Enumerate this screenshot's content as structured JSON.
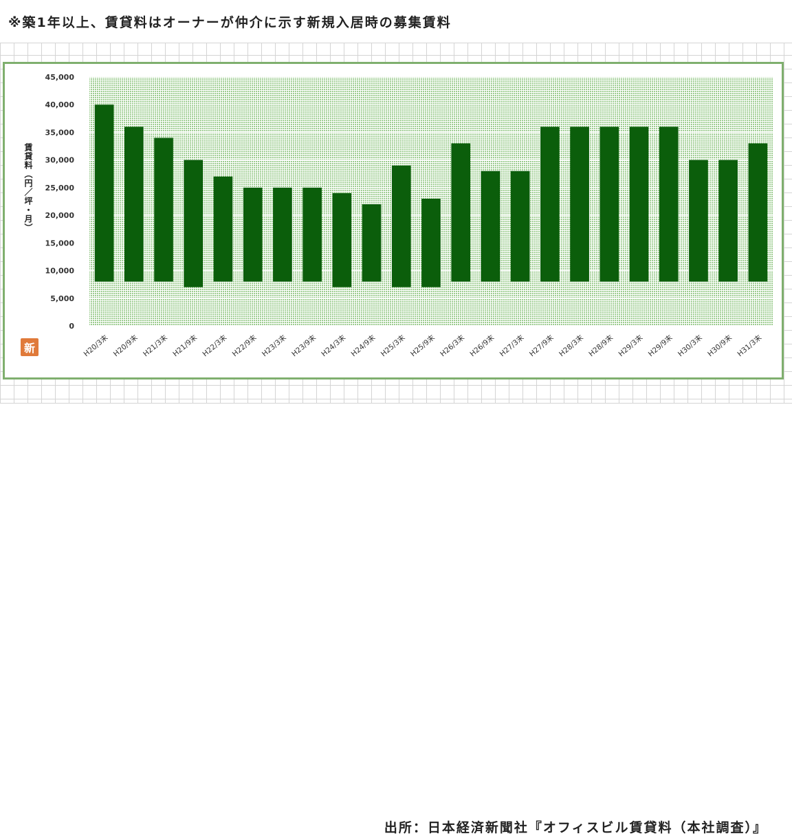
{
  "header": {
    "note": "※築1年以上、賃貸料はオーナーが仲介に示す新規入居時の募集賃料"
  },
  "footer": {
    "source": "出所：日本経済新聞社『オフィスビル賃貸料（本社調査）』"
  },
  "logo": {
    "text": "新",
    "color": "#e07a3a"
  },
  "chart_data": {
    "type": "bar",
    "title": "",
    "xlabel": "",
    "ylabel": "賃貸料（円／坪・月）",
    "ylim": [
      0,
      45000
    ],
    "yticks": [
      0,
      5000,
      10000,
      15000,
      20000,
      25000,
      30000,
      35000,
      40000,
      45000
    ],
    "ytick_labels": [
      "0",
      "5,000",
      "10,000",
      "15,000",
      "20,000",
      "25,000",
      "30,000",
      "35,000",
      "40,000",
      "45,000"
    ],
    "grid": true,
    "bar_color": "#0b5e0b",
    "plot_bg_color": "#9ccc8f",
    "categories": [
      "H20/3末",
      "H20/9末",
      "H21/3末",
      "H21/9末",
      "H22/3末",
      "H22/9末",
      "H23/3末",
      "H23/9末",
      "H24/3末",
      "H24/9末",
      "H25/3末",
      "H25/9末",
      "H26/3末",
      "H26/9末",
      "H27/3末",
      "H27/9末",
      "H28/3末",
      "H28/9末",
      "H29/3末",
      "H29/9末",
      "H30/3末",
      "H30/9末",
      "H31/3末"
    ],
    "series": [
      {
        "low": [
          8000,
          8000,
          8000,
          7000,
          8000,
          8000,
          8000,
          8000,
          7000,
          8000,
          7000,
          7000,
          8000,
          8000,
          8000,
          8000,
          8000,
          8000,
          8000,
          8000,
          8000,
          8000,
          8000
        ],
        "high": [
          40000,
          36000,
          34000,
          30000,
          27000,
          25000,
          25000,
          25000,
          24000,
          22000,
          29000,
          23000,
          33000,
          28000,
          28000,
          36000,
          36000,
          36000,
          36000,
          36000,
          30000,
          30000,
          33000
        ]
      }
    ]
  }
}
